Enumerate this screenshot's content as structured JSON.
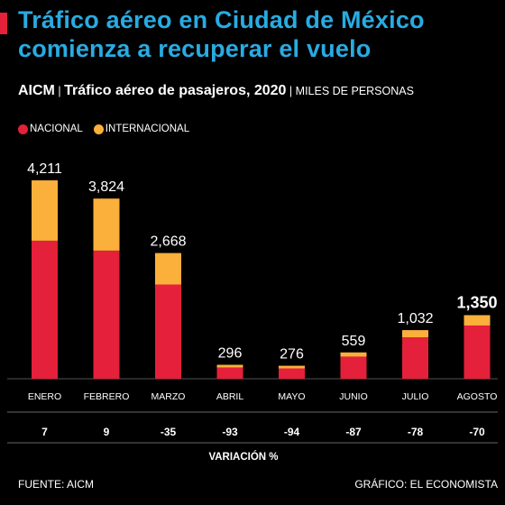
{
  "header": {
    "title": "Tráfico aéreo en Ciudad de México comienza a recuperar el vuelo",
    "subtitle_main": "AICM",
    "subtitle_sep1": " | ",
    "subtitle_desc": "Tráfico aéreo de pasajeros, 2020",
    "subtitle_sep2": " | ",
    "subtitle_unit": "MILES DE PERSONAS"
  },
  "legend": {
    "nacional": "NACIONAL",
    "internacional": "INTERNACIONAL"
  },
  "colors": {
    "nacional": "#e5203a",
    "internacional": "#fbb03b",
    "title": "#29abe2"
  },
  "chart_data": {
    "type": "bar",
    "stacked": true,
    "categories": [
      "ENERO",
      "FEBRERO",
      "MARZO",
      "ABRIL",
      "MAYO",
      "JUNIO",
      "JULIO",
      "AGOSTO"
    ],
    "totals": [
      4211,
      3824,
      2668,
      296,
      276,
      559,
      1032,
      1350
    ],
    "total_labels": [
      "4,211",
      "3,824",
      "2,668",
      "296",
      "276",
      "559",
      "1,032",
      "1,350"
    ],
    "series": [
      {
        "name": "NACIONAL",
        "values": [
          2930,
          2720,
          2000,
          240,
          220,
          470,
          880,
          1130
        ]
      },
      {
        "name": "INTERNACIONAL",
        "values": [
          1281,
          1104,
          668,
          56,
          56,
          89,
          152,
          220
        ]
      }
    ],
    "ylim": [
      0,
      4211
    ],
    "highlight_index": 7,
    "variation_label": "VARIACIÓN %",
    "variation": [
      "7",
      "9",
      "-35",
      "-93",
      "-94",
      "-87",
      "-78",
      "-70"
    ]
  },
  "footer": {
    "source": "FUENTE: AICM",
    "credit": "GRÁFICO: EL ECONOMISTA"
  }
}
